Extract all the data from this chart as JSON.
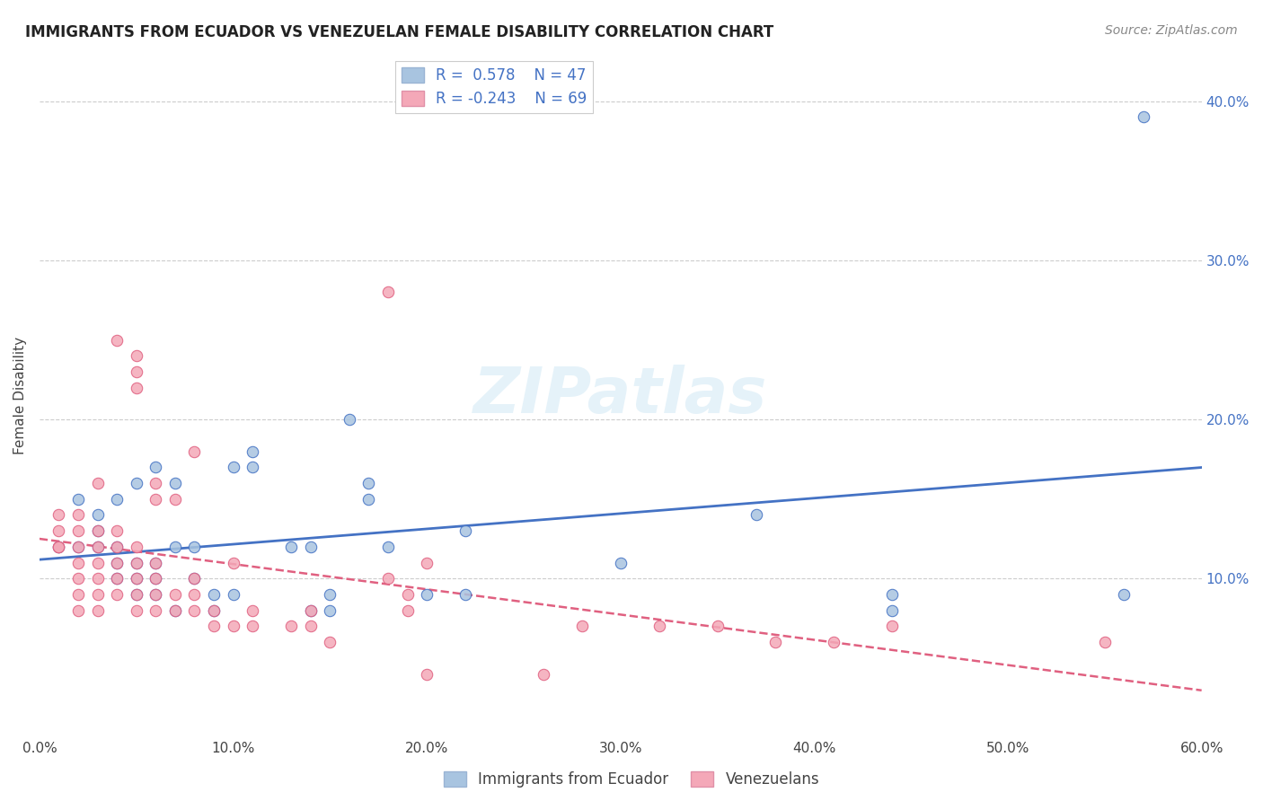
{
  "title": "IMMIGRANTS FROM ECUADOR VS VENEZUELAN FEMALE DISABILITY CORRELATION CHART",
  "source": "Source: ZipAtlas.com",
  "xlabel": "",
  "ylabel": "Female Disability",
  "xlim": [
    0.0,
    0.6
  ],
  "ylim": [
    0.0,
    0.43
  ],
  "x_ticks": [
    0.0,
    0.1,
    0.2,
    0.3,
    0.4,
    0.5,
    0.6
  ],
  "x_tick_labels": [
    "0.0%",
    "10.0%",
    "20.0%",
    "30.0%",
    "40.0%",
    "50.0%",
    "60.0%"
  ],
  "y_ticks_right": [
    0.1,
    0.2,
    0.3,
    0.4
  ],
  "y_tick_labels_right": [
    "10.0%",
    "20.0%",
    "30.0%",
    "40.0%"
  ],
  "blue_R": 0.578,
  "blue_N": 47,
  "pink_R": -0.243,
  "pink_N": 69,
  "blue_color": "#a8c4e0",
  "pink_color": "#f4a8b8",
  "blue_line_color": "#4472c4",
  "pink_line_color": "#e06080",
  "watermark": "ZIPatlas",
  "legend_label_blue": "Immigrants from Ecuador",
  "legend_label_pink": "Venezuelans",
  "blue_scatter_x": [
    0.01,
    0.02,
    0.02,
    0.03,
    0.03,
    0.03,
    0.04,
    0.04,
    0.04,
    0.04,
    0.05,
    0.05,
    0.05,
    0.05,
    0.06,
    0.06,
    0.06,
    0.06,
    0.07,
    0.07,
    0.07,
    0.08,
    0.08,
    0.09,
    0.09,
    0.1,
    0.1,
    0.11,
    0.11,
    0.13,
    0.14,
    0.14,
    0.15,
    0.15,
    0.16,
    0.17,
    0.17,
    0.18,
    0.2,
    0.22,
    0.22,
    0.3,
    0.37,
    0.44,
    0.44,
    0.56,
    0.57
  ],
  "blue_scatter_y": [
    0.12,
    0.12,
    0.15,
    0.12,
    0.13,
    0.14,
    0.1,
    0.11,
    0.12,
    0.15,
    0.09,
    0.1,
    0.11,
    0.16,
    0.09,
    0.1,
    0.11,
    0.17,
    0.08,
    0.12,
    0.16,
    0.1,
    0.12,
    0.08,
    0.09,
    0.09,
    0.17,
    0.17,
    0.18,
    0.12,
    0.08,
    0.12,
    0.08,
    0.09,
    0.2,
    0.15,
    0.16,
    0.12,
    0.09,
    0.13,
    0.09,
    0.11,
    0.14,
    0.08,
    0.09,
    0.09,
    0.39
  ],
  "pink_scatter_x": [
    0.01,
    0.01,
    0.01,
    0.01,
    0.02,
    0.02,
    0.02,
    0.02,
    0.02,
    0.02,
    0.02,
    0.03,
    0.03,
    0.03,
    0.03,
    0.03,
    0.03,
    0.03,
    0.04,
    0.04,
    0.04,
    0.04,
    0.04,
    0.04,
    0.05,
    0.05,
    0.05,
    0.05,
    0.05,
    0.05,
    0.05,
    0.05,
    0.06,
    0.06,
    0.06,
    0.06,
    0.06,
    0.06,
    0.07,
    0.07,
    0.07,
    0.08,
    0.08,
    0.08,
    0.08,
    0.09,
    0.09,
    0.1,
    0.1,
    0.11,
    0.11,
    0.13,
    0.14,
    0.14,
    0.15,
    0.18,
    0.18,
    0.19,
    0.19,
    0.2,
    0.2,
    0.26,
    0.28,
    0.32,
    0.35,
    0.38,
    0.41,
    0.44,
    0.55
  ],
  "pink_scatter_y": [
    0.12,
    0.12,
    0.13,
    0.14,
    0.08,
    0.09,
    0.1,
    0.11,
    0.12,
    0.13,
    0.14,
    0.08,
    0.09,
    0.1,
    0.11,
    0.12,
    0.13,
    0.16,
    0.09,
    0.1,
    0.11,
    0.12,
    0.13,
    0.25,
    0.08,
    0.09,
    0.1,
    0.11,
    0.12,
    0.22,
    0.23,
    0.24,
    0.08,
    0.09,
    0.1,
    0.11,
    0.15,
    0.16,
    0.08,
    0.09,
    0.15,
    0.08,
    0.09,
    0.1,
    0.18,
    0.07,
    0.08,
    0.07,
    0.11,
    0.07,
    0.08,
    0.07,
    0.07,
    0.08,
    0.06,
    0.1,
    0.28,
    0.08,
    0.09,
    0.04,
    0.11,
    0.04,
    0.07,
    0.07,
    0.07,
    0.06,
    0.06,
    0.07,
    0.06
  ]
}
